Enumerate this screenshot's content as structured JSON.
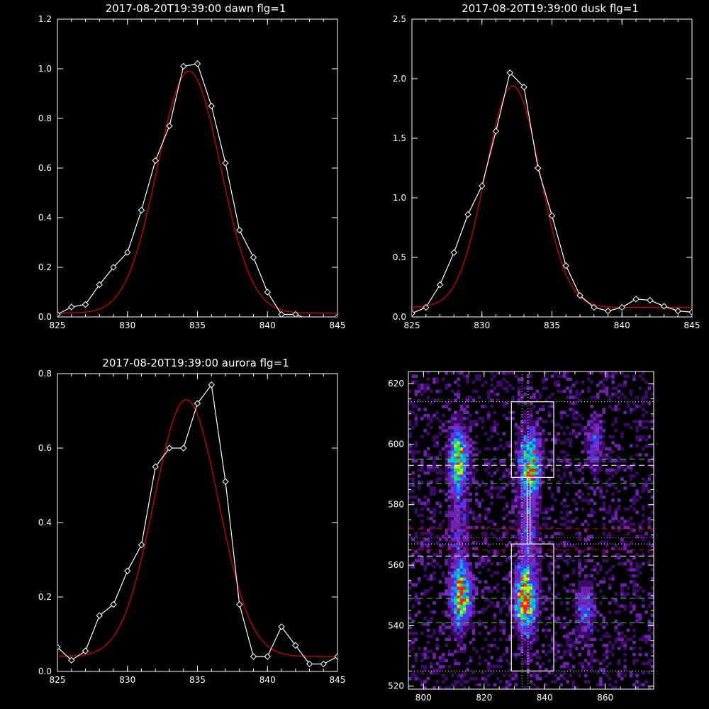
{
  "chart_data": [
    {
      "type": "line",
      "title": "2017-08-20T19:39:00 dawn flg=1",
      "xlim": [
        825,
        845
      ],
      "ylim": [
        0,
        1.2
      ],
      "xticks": [
        "825",
        "830",
        "835",
        "840",
        "845"
      ],
      "yticks": [
        "0.0",
        "0.2",
        "0.4",
        "0.6",
        "0.8",
        "1.0",
        "1.2"
      ],
      "series": [
        {
          "style": "white-diamonds",
          "color": "#ffffff",
          "x": [
            825,
            826,
            827,
            828,
            829,
            830,
            831,
            832,
            833,
            834,
            835,
            836,
            837,
            838,
            839,
            840,
            841,
            842,
            843,
            844,
            845
          ],
          "y": [
            0.01,
            0.04,
            0.05,
            0.13,
            0.2,
            0.26,
            0.43,
            0.63,
            0.77,
            1.01,
            1.02,
            0.85,
            0.62,
            0.35,
            0.24,
            0.1,
            0.01,
            0.01,
            -0.01,
            -0.01,
            0.0
          ]
        },
        {
          "style": "red-fit",
          "color": "#d40000",
          "gauss": {
            "amp": 0.975,
            "center": 834.4,
            "sigma": 2.25,
            "offset": 0.015
          }
        }
      ]
    },
    {
      "type": "line",
      "title": "2017-08-20T19:39:00 dusk flg=1",
      "xlim": [
        825,
        845
      ],
      "ylim": [
        0,
        2.5
      ],
      "xticks": [
        "825",
        "830",
        "835",
        "840",
        "845"
      ],
      "yticks": [
        "0.0",
        "0.5",
        "1.0",
        "1.5",
        "2.0",
        "2.5"
      ],
      "series": [
        {
          "style": "white-diamonds",
          "color": "#ffffff",
          "x": [
            825,
            826,
            827,
            828,
            829,
            830,
            831,
            832,
            833,
            834,
            835,
            836,
            837,
            838,
            839,
            840,
            841,
            842,
            843,
            844,
            845
          ],
          "y": [
            0.03,
            0.08,
            0.27,
            0.54,
            0.86,
            1.1,
            1.56,
            2.05,
            1.93,
            1.25,
            0.85,
            0.43,
            0.18,
            0.08,
            0.05,
            0.08,
            0.15,
            0.14,
            0.09,
            0.05,
            0.04
          ]
        },
        {
          "style": "red-fit",
          "color": "#d40000",
          "gauss": {
            "amp": 1.86,
            "center": 832.2,
            "sigma": 1.95,
            "offset": 0.08
          }
        }
      ]
    },
    {
      "type": "line",
      "title": "2017-08-20T19:39:00 aurora flg=1",
      "xlim": [
        825,
        845
      ],
      "ylim": [
        0,
        0.8
      ],
      "xticks": [
        "825",
        "830",
        "835",
        "840",
        "845"
      ],
      "yticks": [
        "0.0",
        "0.2",
        "0.4",
        "0.6",
        "0.8"
      ],
      "series": [
        {
          "style": "white-diamonds",
          "color": "#ffffff",
          "x": [
            825,
            826,
            827,
            828,
            829,
            830,
            831,
            832,
            833,
            834,
            835,
            836,
            837,
            838,
            839,
            840,
            841,
            842,
            843,
            844,
            845
          ],
          "y": [
            0.065,
            0.03,
            0.055,
            0.15,
            0.18,
            0.27,
            0.34,
            0.55,
            0.6,
            0.6,
            0.72,
            0.77,
            0.51,
            0.18,
            0.04,
            0.04,
            0.12,
            0.07,
            0.02,
            0.02,
            0.04
          ]
        },
        {
          "style": "red-fit",
          "color": "#d40000",
          "gauss": {
            "amp": 0.69,
            "center": 834.2,
            "sigma": 2.3,
            "offset": 0.04
          }
        }
      ]
    },
    {
      "type": "heatmap",
      "title": "",
      "xlim": [
        795,
        876
      ],
      "ylim": [
        519,
        624
      ],
      "xticks": [
        800,
        820,
        840,
        860
      ],
      "yticks": [
        520,
        540,
        560,
        580,
        600,
        620
      ],
      "colormap": [
        "#000000",
        "#3a0a66",
        "#6a23a8",
        "#7b2fd0",
        "#3a3aff",
        "#1f90ff",
        "#00d0d0",
        "#20e060",
        "#c0f000",
        "#ff2000"
      ],
      "hotspots": [
        {
          "x": 812,
          "y": 549,
          "intensity": 1.0
        },
        {
          "x": 833,
          "y": 548,
          "intensity": 1.0
        },
        {
          "x": 835,
          "y": 593,
          "intensity": 0.9
        },
        {
          "x": 811,
          "y": 595,
          "intensity": 0.8
        },
        {
          "x": 853,
          "y": 545,
          "intensity": 0.5
        },
        {
          "x": 856,
          "y": 599,
          "intensity": 0.4
        }
      ],
      "boxes": [
        {
          "x0": 829,
          "x1": 843,
          "y0": 589,
          "y1": 614
        },
        {
          "x0": 829,
          "x1": 843,
          "y0": 525,
          "y1": 567
        }
      ],
      "white_dotted_h": [
        614,
        567,
        525
      ],
      "white_dotted_v": [
        832.5,
        834.5
      ],
      "green_dashed_h": [
        595,
        587,
        549,
        541
      ],
      "white_dashed_h": [
        593,
        563
      ],
      "red_dashed_h": [
        572,
        565
      ],
      "magenta_dotted_h": [
        569
      ]
    }
  ]
}
